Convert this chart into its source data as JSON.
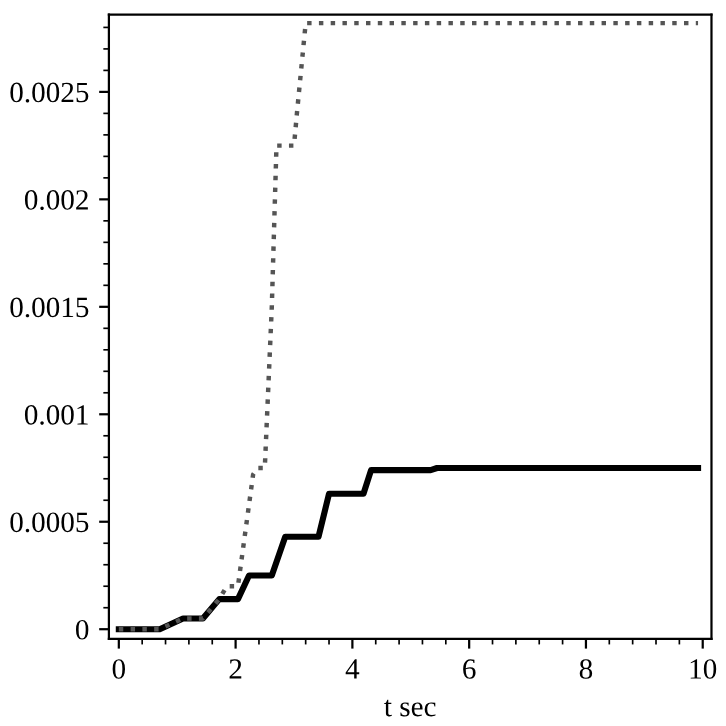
{
  "chart_data": {
    "type": "line",
    "xlabel": "t sec",
    "xlim": [
      -0.17,
      10.15
    ],
    "ylim": [
      -4.5e-05,
      0.00286
    ],
    "xticks": [
      0,
      2,
      4,
      6,
      8,
      10
    ],
    "yticks": [
      0,
      0.0005,
      0.001,
      0.0015,
      0.002,
      0.0025
    ],
    "grid": false,
    "marker": "none",
    "series": [
      {
        "color": "#000000",
        "line_style": "solid",
        "x": [
          0,
          0.7,
          1.1,
          1.44,
          1.72,
          2.04,
          2.23,
          2.62,
          2.85,
          3.42,
          3.6,
          4.19,
          4.32,
          5.34,
          5.45,
          9.92
        ],
        "values": [
          0,
          0,
          5e-05,
          5e-05,
          0.00014,
          0.00014,
          0.00025,
          0.00025,
          0.00043,
          0.00043,
          0.00063,
          0.00063,
          0.00074,
          0.00074,
          0.00075,
          0.00075
        ]
      },
      {
        "color": "#555555",
        "line_style": "dotted",
        "x": [
          0,
          0.7,
          1.1,
          1.44,
          1.72,
          1.85,
          2.04,
          2.3,
          2.38,
          2.5,
          2.62,
          2.7,
          3.0,
          3.05,
          3.2,
          9.92
        ],
        "values": [
          0,
          0,
          5e-05,
          5e-05,
          0.00014,
          0.0002,
          0.0002,
          0.00072,
          0.00075,
          0.00075,
          0.0015,
          0.00225,
          0.00225,
          0.0024,
          0.00282,
          0.00282
        ]
      }
    ]
  }
}
